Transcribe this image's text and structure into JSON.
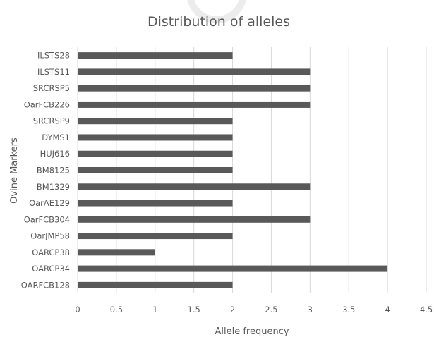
{
  "chart_data": {
    "type": "bar",
    "orientation": "horizontal",
    "title": "Distribution of alleles",
    "xlabel": "Allele frequency",
    "ylabel": "Ovine Markers",
    "categories": [
      "ILSTS28",
      "ILSTS11",
      "SRCRSP5",
      "OarFCB226",
      "SRCRSP9",
      "DYMS1",
      "HUJ616",
      "BM8125",
      "BM1329",
      "OarAE129",
      "OarFCB304",
      "OarJMP58",
      "OARCP38",
      "OARCP34",
      "OARFCB128"
    ],
    "values": [
      2,
      3,
      3,
      3,
      2,
      2,
      2,
      2,
      3,
      2,
      3,
      2,
      1,
      4,
      2
    ],
    "xlim": [
      0,
      4.5
    ],
    "xticks": [
      "0",
      "0.5",
      "1",
      "1.5",
      "2",
      "2.5",
      "3",
      "3.5",
      "4",
      "4.5"
    ],
    "grid": "vertical",
    "legend": "none",
    "bar_color": "#595959",
    "grid_color": "#d9d9d9"
  }
}
